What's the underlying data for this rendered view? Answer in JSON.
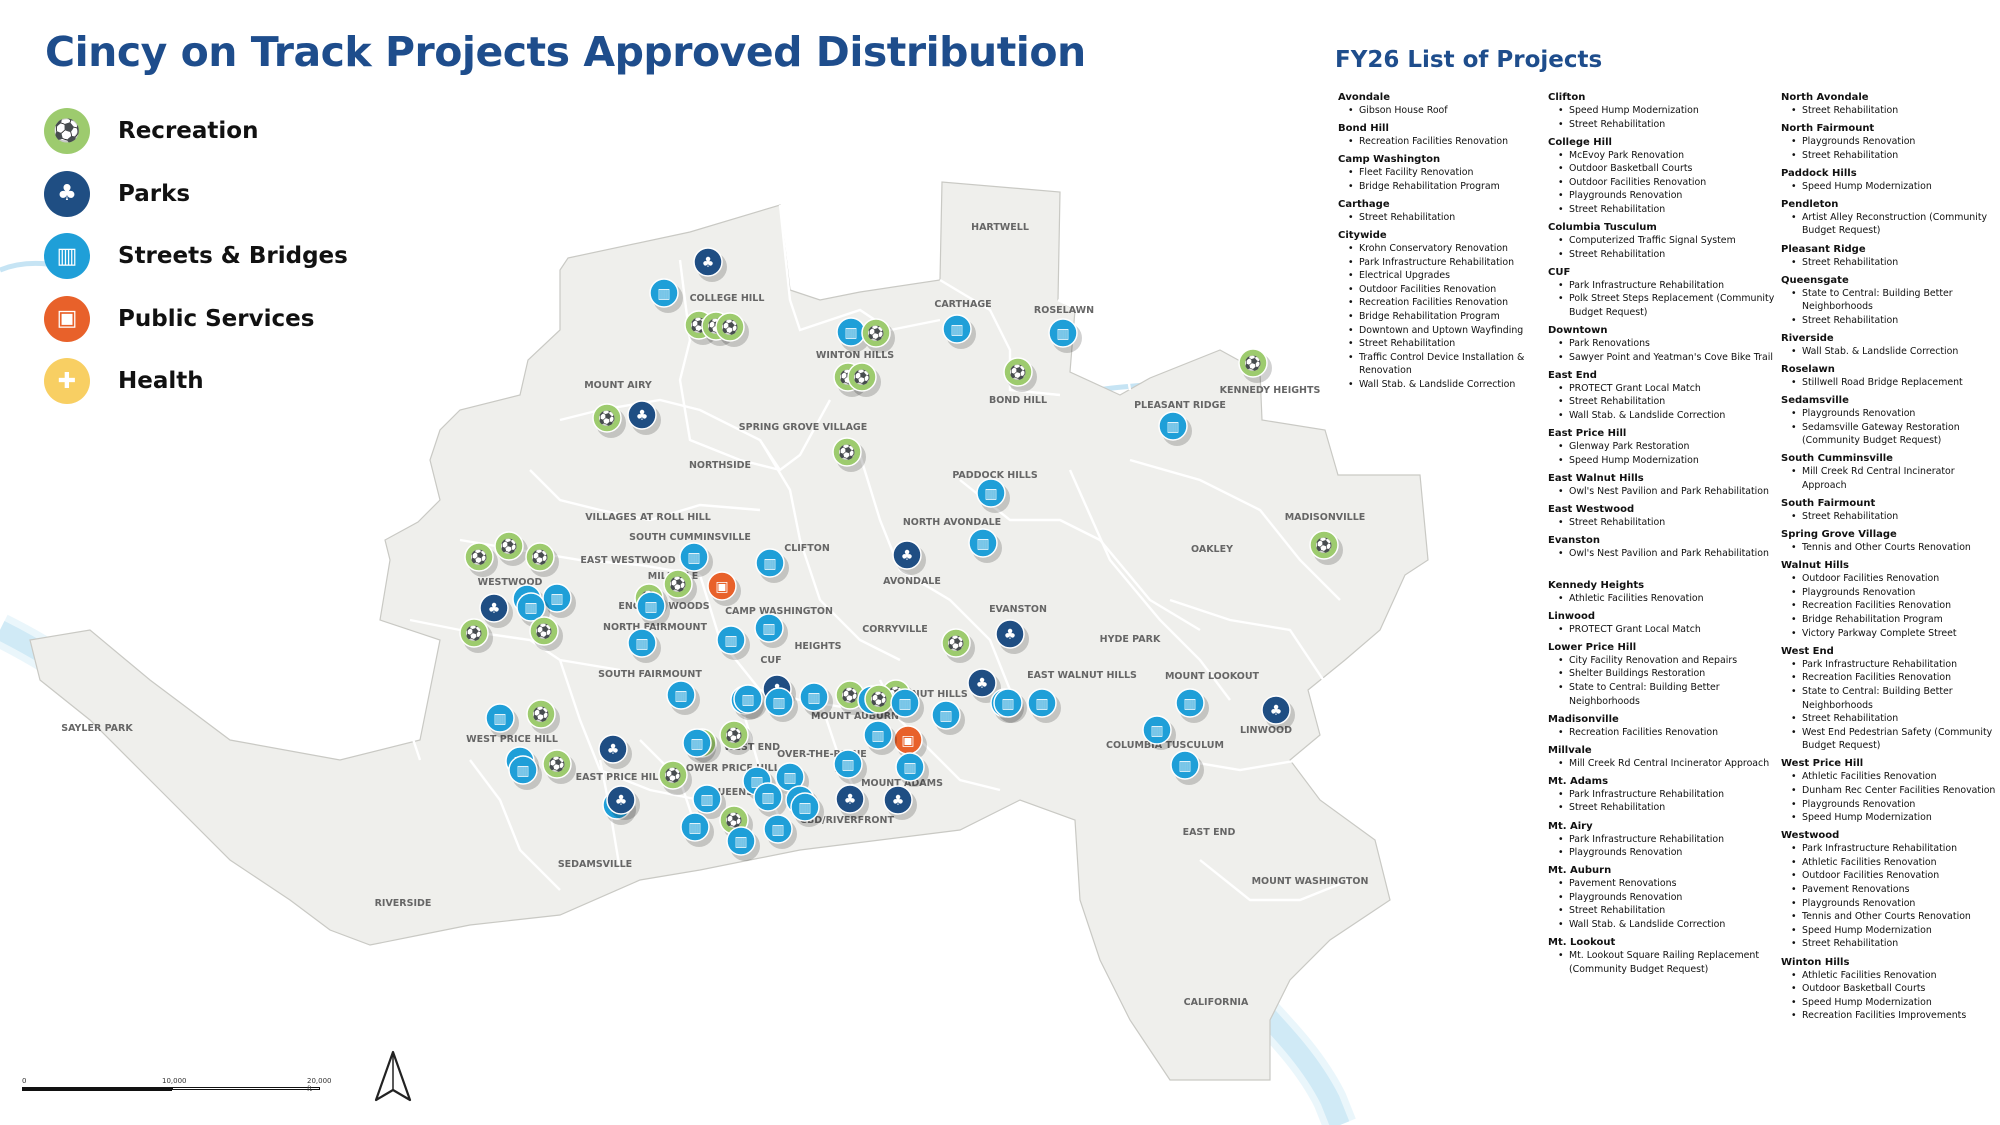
{
  "title": "Cincy on Track Projects Approved Distribution",
  "legend": [
    {
      "label": "Recreation",
      "color": "#9dcb6e",
      "icon": "recreation-icon"
    },
    {
      "label": "Parks",
      "color": "#1f4e83",
      "icon": "parks-icon"
    },
    {
      "label": "Streets & Bridges",
      "color": "#1f9fd8",
      "icon": "streets-bridges-icon"
    },
    {
      "label": "Public Services",
      "color": "#e8612a",
      "icon": "public-services-icon"
    },
    {
      "label": "Health",
      "color": "#f8cf63",
      "icon": "health-icon"
    }
  ],
  "projects_title": "FY26 List of Projects",
  "columns": [
    [
      {
        "name": "Avondale",
        "items": [
          "Gibson House Roof"
        ]
      },
      {
        "name": "Bond Hill",
        "items": [
          "Recreation Facilities Renovation"
        ]
      },
      {
        "name": "Camp Washington",
        "items": [
          "Fleet Facility Renovation",
          "Bridge Rehabilitation Program"
        ]
      },
      {
        "name": "Carthage",
        "items": [
          "Street Rehabilitation"
        ]
      },
      {
        "name": "Citywide",
        "items": [
          "Krohn Conservatory Renovation",
          "Park Infrastructure Rehabilitation",
          "Electrical Upgrades",
          "Outdoor Facilities Renovation",
          "Recreation Facilities Renovation",
          "Bridge Rehabilitation Program",
          "Downtown and Uptown Wayfinding",
          "Street Rehabilitation",
          "Traffic Control Device Installation & Renovation",
          "Wall Stab. & Landslide Correction"
        ]
      }
    ],
    [
      {
        "name": "Clifton",
        "items": [
          "Speed Hump Modernization",
          "Street Rehabilitation"
        ]
      },
      {
        "name": "College Hill",
        "items": [
          "McEvoy Park Renovation",
          "Outdoor Basketball Courts",
          "Outdoor Facilities Renovation",
          "Playgrounds Renovation",
          "Street Rehabilitation"
        ]
      },
      {
        "name": "Columbia Tusculum",
        "items": [
          "Computerized Traffic Signal System",
          "Street Rehabilitation"
        ]
      },
      {
        "name": "CUF",
        "items": [
          "Park Infrastructure Rehabilitation",
          "Polk Street Steps Replacement (Community Budget Request)"
        ]
      },
      {
        "name": "Downtown",
        "items": [
          "Park Renovations",
          "Sawyer Point and Yeatman's Cove Bike Trail"
        ]
      },
      {
        "name": "East End",
        "items": [
          "PROTECT Grant Local Match",
          "Street Rehabilitation",
          "Wall Stab. & Landslide Correction"
        ]
      },
      {
        "name": "East Price Hill",
        "items": [
          "Glenway Park Restoration",
          "Speed Hump Modernization"
        ]
      },
      {
        "name": "East Walnut Hills",
        "items": [
          "Owl's Nest Pavilion and Park Rehabilitation"
        ]
      },
      {
        "name": "East Westwood",
        "items": [
          "Street Rehabilitation"
        ]
      },
      {
        "name": "Evanston",
        "items": [
          "Owl's Nest Pavilion and Park Rehabilitation"
        ]
      },
      {
        "name": "Kennedy Heights",
        "items": [
          "Athletic Facilities Renovation"
        ]
      },
      {
        "name": "Linwood",
        "items": [
          "PROTECT Grant Local Match"
        ]
      },
      {
        "name": "Lower Price Hill",
        "items": [
          "City Facility Renovation and Repairs",
          "Shelter Buildings Restoration",
          "State to Central: Building Better Neighborhoods"
        ]
      },
      {
        "name": "Madisonville",
        "items": [
          "Recreation Facilities Renovation"
        ]
      },
      {
        "name": "Millvale",
        "items": [
          "Mill Creek Rd Central Incinerator Approach"
        ]
      },
      {
        "name": "Mt. Adams",
        "items": [
          "Park Infrastructure Rehabilitation",
          "Street Rehabilitation"
        ]
      },
      {
        "name": "Mt. Airy",
        "items": [
          "Park Infrastructure Rehabilitation",
          "Playgrounds Renovation"
        ]
      },
      {
        "name": "Mt. Auburn",
        "items": [
          "Pavement Renovations",
          "Playgrounds Renovation",
          "Street Rehabilitation",
          "Wall Stab. & Landslide Correction"
        ]
      },
      {
        "name": "Mt. Lookout",
        "items": [
          "Mt. Lookout Square Railing Replacement (Community Budget Request)"
        ]
      }
    ],
    [
      {
        "name": "North Avondale",
        "items": [
          "Street Rehabilitation"
        ]
      },
      {
        "name": "North Fairmount",
        "items": [
          "Playgrounds Renovation",
          "Street Rehabilitation"
        ]
      },
      {
        "name": "Paddock Hills",
        "items": [
          "Speed Hump Modernization"
        ]
      },
      {
        "name": "Pendleton",
        "items": [
          "Artist Alley Reconstruction (Community Budget Request)"
        ]
      },
      {
        "name": "Pleasant Ridge",
        "items": [
          "Street Rehabilitation"
        ]
      },
      {
        "name": "Queensgate",
        "items": [
          "State to Central: Building Better Neighborhoods",
          "Street Rehabilitation"
        ]
      },
      {
        "name": "Riverside",
        "items": [
          "Wall Stab. & Landslide Correction"
        ]
      },
      {
        "name": "Roselawn",
        "items": [
          "Stillwell Road Bridge Replacement"
        ]
      },
      {
        "name": "Sedamsville",
        "items": [
          "Playgrounds Renovation",
          "Sedamsville Gateway Restoration (Community Budget Request)"
        ]
      },
      {
        "name": "South Cumminsville",
        "items": [
          "Mill Creek Rd Central Incinerator Approach"
        ]
      },
      {
        "name": "South Fairmount",
        "items": [
          "Street Rehabilitation"
        ]
      },
      {
        "name": "Spring Grove Village",
        "items": [
          "Tennis and Other Courts Renovation"
        ]
      },
      {
        "name": "Walnut Hills",
        "items": [
          "Outdoor Facilities Renovation",
          "Playgrounds Renovation",
          "Recreation Facilities Renovation",
          "Bridge Rehabilitation Program",
          "Victory Parkway Complete Street"
        ]
      },
      {
        "name": "West End",
        "items": [
          "Park Infrastructure Rehabilitation",
          "Recreation Facilities Renovation",
          "State to Central: Building Better Neighborhoods",
          "Street Rehabilitation",
          "West End Pedestrian Safety (Community Budget Request)"
        ]
      },
      {
        "name": "West Price Hill",
        "items": [
          "Athletic Facilities Renovation",
          "Dunham Rec Center Facilities Renovation",
          "Playgrounds Renovation",
          "Speed Hump Modernization"
        ]
      },
      {
        "name": "Westwood",
        "items": [
          "Park Infrastructure Rehabilitation",
          "Athletic Facilities Renovation",
          "Outdoor Facilities Renovation",
          "Pavement Renovations",
          "Playgrounds Renovation",
          "Tennis and Other Courts Renovation",
          "Speed Hump Modernization",
          "Street Rehabilitation"
        ]
      },
      {
        "name": "Winton Hills",
        "items": [
          "Athletic Facilities Renovation",
          "Outdoor Basketball Courts",
          "Speed Hump Modernization",
          "Recreation Facilities Improvements"
        ]
      }
    ]
  ],
  "neighborhoods": [
    "COLLEGE HILL",
    "HARTWELL",
    "CARTHAGE",
    "ROSELAWN",
    "WINTON HILLS",
    "MOUNT AIRY",
    "BOND HILL",
    "PLEASANT RIDGE",
    "KENNEDY HEIGHTS",
    "SPRING GROVE VILLAGE",
    "NORTHSIDE",
    "PADDOCK HILLS",
    "VILLAGES AT ROLL HILL",
    "SOUTH CUMMINSVILLE",
    "NORTH AVONDALE",
    "MADISONVILLE",
    "EAST WESTWOOD",
    "CLIFTON",
    "OAKLEY",
    "MILLVALE",
    "WESTWOOD",
    "ENGLISH WOODS",
    "AVONDALE",
    "CAMP WASHINGTON",
    "EVANSTON",
    "NORTH FAIRMOUNT",
    "CORRYVILLE",
    "HYDE PARK",
    "HEIGHTS",
    "CUF",
    "SOUTH FAIRMOUNT",
    "EAST WALNUT HILLS",
    "MOUNT LOOKOUT",
    "MOUNT AUBURN",
    "WALNUT HILLS",
    "SAYLER PARK",
    "WEST PRICE HILL",
    "WEST END",
    "COLUMBIA TUSCULUM",
    "LINWOOD",
    "OVER-THE-RHINE",
    "PEN",
    "LOWER PRICE HILL",
    "EAST PRICE HILL",
    "MOUNT ADAMS",
    "QUEENSGATE",
    "CBD/RIVERFRONT",
    "EAST END",
    "SEDAMSVILLE",
    "MOUNT WASHINGTON",
    "RIVERSIDE",
    "CALIFORNIA"
  ],
  "markers": [
    {
      "category": "parks",
      "icon": "parks-icon"
    },
    {
      "category": "streets",
      "icon": "streets-bridges-icon"
    },
    {
      "category": "recreation",
      "icon": "recreation-icon"
    },
    {
      "category": "recreation",
      "icon": "recreation-icon"
    },
    {
      "category": "recreation",
      "icon": "recreation-icon"
    },
    {
      "category": "streets",
      "icon": "streets-bridges-icon"
    },
    {
      "category": "recreation",
      "icon": "recreation-icon"
    },
    {
      "category": "streets",
      "icon": "streets-bridges-icon"
    },
    {
      "category": "streets",
      "icon": "streets-bridges-icon"
    },
    {
      "category": "recreation",
      "icon": "recreation-icon"
    },
    {
      "category": "recreation",
      "icon": "recreation-icon"
    },
    {
      "category": "recreation",
      "icon": "recreation-icon"
    },
    {
      "category": "recreation",
      "icon": "recreation-icon"
    },
    {
      "category": "parks",
      "icon": "parks-icon"
    },
    {
      "category": "recreation",
      "icon": "recreation-icon"
    },
    {
      "category": "streets",
      "icon": "streets-bridges-icon"
    },
    {
      "category": "recreation",
      "icon": "recreation-icon"
    },
    {
      "category": "streets",
      "icon": "streets-bridges-icon"
    },
    {
      "category": "recreation",
      "icon": "recreation-icon"
    },
    {
      "category": "streets",
      "icon": "streets-bridges-icon"
    },
    {
      "category": "recreation",
      "icon": "recreation-icon"
    },
    {
      "category": "recreation",
      "icon": "recreation-icon"
    },
    {
      "category": "recreation",
      "icon": "recreation-icon"
    },
    {
      "category": "parks",
      "icon": "parks-icon"
    },
    {
      "category": "streets",
      "icon": "streets-bridges-icon"
    },
    {
      "category": "streets",
      "icon": "streets-bridges-icon"
    },
    {
      "category": "recreation",
      "icon": "recreation-icon"
    },
    {
      "category": "recreation",
      "icon": "recreation-icon"
    },
    {
      "category": "streets",
      "icon": "streets-bridges-icon"
    },
    {
      "category": "streets",
      "icon": "streets-bridges-icon"
    },
    {
      "category": "public",
      "icon": "public-services-icon"
    },
    {
      "category": "streets",
      "icon": "streets-bridges-icon"
    },
    {
      "category": "streets",
      "icon": "streets-bridges-icon"
    },
    {
      "category": "parks",
      "icon": "parks-icon"
    },
    {
      "category": "streets",
      "icon": "streets-bridges-icon"
    },
    {
      "category": "parks",
      "icon": "parks-icon"
    },
    {
      "category": "streets",
      "icon": "streets-bridges-icon"
    },
    {
      "category": "recreation",
      "icon": "recreation-icon"
    },
    {
      "category": "streets",
      "icon": "streets-bridges-icon"
    },
    {
      "category": "recreation",
      "icon": "recreation-icon"
    },
    {
      "category": "recreation",
      "icon": "recreation-icon"
    },
    {
      "category": "recreation",
      "icon": "recreation-icon"
    },
    {
      "category": "streets",
      "icon": "streets-bridges-icon"
    },
    {
      "category": "streets",
      "icon": "streets-bridges-icon"
    },
    {
      "category": "parks",
      "icon": "parks-icon"
    },
    {
      "category": "streets",
      "icon": "streets-bridges-icon"
    },
    {
      "category": "streets",
      "icon": "streets-bridges-icon"
    },
    {
      "category": "recreation",
      "icon": "recreation-icon"
    },
    {
      "category": "recreation",
      "icon": "recreation-icon"
    },
    {
      "category": "streets",
      "icon": "streets-bridges-icon"
    },
    {
      "category": "recreation",
      "icon": "recreation-icon"
    },
    {
      "category": "recreation",
      "icon": "recreation-icon"
    },
    {
      "category": "parks",
      "icon": "parks-icon"
    },
    {
      "category": "streets",
      "icon": "streets-bridges-icon"
    },
    {
      "category": "streets",
      "icon": "streets-bridges-icon"
    },
    {
      "category": "parks",
      "icon": "parks-icon"
    },
    {
      "category": "streets",
      "icon": "streets-bridges-icon"
    },
    {
      "category": "recreation",
      "icon": "recreation-icon"
    },
    {
      "category": "streets",
      "icon": "streets-bridges-icon"
    },
    {
      "category": "streets",
      "icon": "streets-bridges-icon"
    },
    {
      "category": "streets",
      "icon": "streets-bridges-icon"
    },
    {
      "category": "streets",
      "icon": "streets-bridges-icon"
    },
    {
      "category": "recreation",
      "icon": "recreation-icon"
    },
    {
      "category": "streets",
      "icon": "streets-bridges-icon"
    },
    {
      "category": "streets",
      "icon": "streets-bridges-icon"
    },
    {
      "category": "public",
      "icon": "public-services-icon"
    },
    {
      "category": "recreation",
      "icon": "recreation-icon"
    },
    {
      "category": "streets",
      "icon": "streets-bridges-icon"
    },
    {
      "category": "streets",
      "icon": "streets-bridges-icon"
    },
    {
      "category": "streets",
      "icon": "streets-bridges-icon"
    },
    {
      "category": "parks",
      "icon": "parks-icon"
    },
    {
      "category": "parks",
      "icon": "parks-icon"
    },
    {
      "category": "streets",
      "icon": "streets-bridges-icon"
    },
    {
      "category": "streets",
      "icon": "streets-bridges-icon"
    },
    {
      "category": "parks",
      "icon": "parks-icon"
    },
    {
      "category": "streets",
      "icon": "streets-bridges-icon"
    },
    {
      "category": "streets",
      "icon": "streets-bridges-icon"
    },
    {
      "category": "recreation",
      "icon": "recreation-icon"
    },
    {
      "category": "streets",
      "icon": "streets-bridges-icon"
    },
    {
      "category": "streets",
      "icon": "streets-bridges-icon"
    },
    {
      "category": "streets",
      "icon": "streets-bridges-icon"
    },
    {
      "category": "streets",
      "icon": "streets-bridges-icon"
    },
    {
      "category": "streets",
      "icon": "streets-bridges-icon"
    },
    {
      "category": "streets",
      "icon": "streets-bridges-icon"
    },
    {
      "category": "streets",
      "icon": "streets-bridges-icon"
    },
    {
      "category": "streets",
      "icon": "streets-bridges-icon"
    },
    {
      "category": "streets",
      "icon": "streets-bridges-icon"
    },
    {
      "category": "parks",
      "icon": "parks-icon"
    },
    {
      "category": "streets",
      "icon": "streets-bridges-icon"
    }
  ],
  "scale": {
    "labels": [
      "0",
      "10,000",
      "20,000 ft"
    ]
  },
  "north_arrow": "north-arrow-icon"
}
